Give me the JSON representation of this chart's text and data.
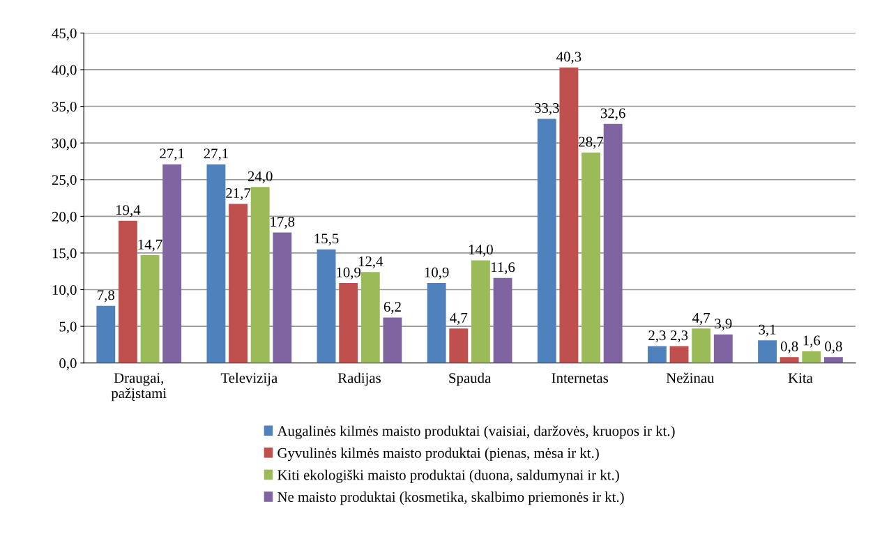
{
  "chart_data": {
    "type": "bar",
    "categories": [
      "Draugai,\npažįstami",
      "Televizija",
      "Radijas",
      "Spauda",
      "Internetas",
      "Nežinau",
      "Kita"
    ],
    "series": [
      {
        "name": "Augalinės kilmės maisto produktai (vaisiai, daržovės, kruopos ir kt.)",
        "color": "#4f81bd",
        "values": [
          7.8,
          27.1,
          15.5,
          10.9,
          33.3,
          2.3,
          3.1
        ],
        "value_labels": [
          "7,8",
          "27,1",
          "15,5",
          "10,9",
          "33,3",
          "2,3",
          "3,1"
        ]
      },
      {
        "name": "Gyvulinės kilmės maisto produktai (pienas, mėsa ir kt.)",
        "color": "#c0504d",
        "values": [
          19.4,
          21.7,
          10.9,
          4.7,
          40.3,
          2.3,
          0.8
        ],
        "value_labels": [
          "19,4",
          "21,7",
          "10,9",
          "4,7",
          "40,3",
          "2,3",
          "0,8"
        ]
      },
      {
        "name": "Kiti ekologiški maisto produktai (duona, saldumynai ir kt.)",
        "color": "#9bbb59",
        "values": [
          14.7,
          24.0,
          12.4,
          14.0,
          28.7,
          4.7,
          1.6
        ],
        "value_labels": [
          "14,7",
          "24,0",
          "12,4",
          "14,0",
          "28,7",
          "4,7",
          "1,6"
        ]
      },
      {
        "name": "Ne maisto produktai (kosmetika, skalbimo priemonės ir kt.)",
        "color": "#8064a2",
        "values": [
          27.1,
          17.8,
          6.2,
          11.6,
          32.6,
          3.9,
          0.8
        ],
        "value_labels": [
          "27,1",
          "17,8",
          "6,2",
          "11,6",
          "32,6",
          "3,9",
          "0,8"
        ]
      }
    ],
    "ylim": [
      0,
      45
    ],
    "yticks": [
      {
        "value": 0,
        "label": "0,0"
      },
      {
        "value": 5,
        "label": "5,0"
      },
      {
        "value": 10,
        "label": "10,0"
      },
      {
        "value": 15,
        "label": "15,0"
      },
      {
        "value": 20,
        "label": "20,0"
      },
      {
        "value": 25,
        "label": "25,0"
      },
      {
        "value": 30,
        "label": "30,0"
      },
      {
        "value": 35,
        "label": "35,0"
      },
      {
        "value": 40,
        "label": "40,0"
      },
      {
        "value": 45,
        "label": "45,0"
      }
    ],
    "grid": "y",
    "legend": "bottom"
  }
}
